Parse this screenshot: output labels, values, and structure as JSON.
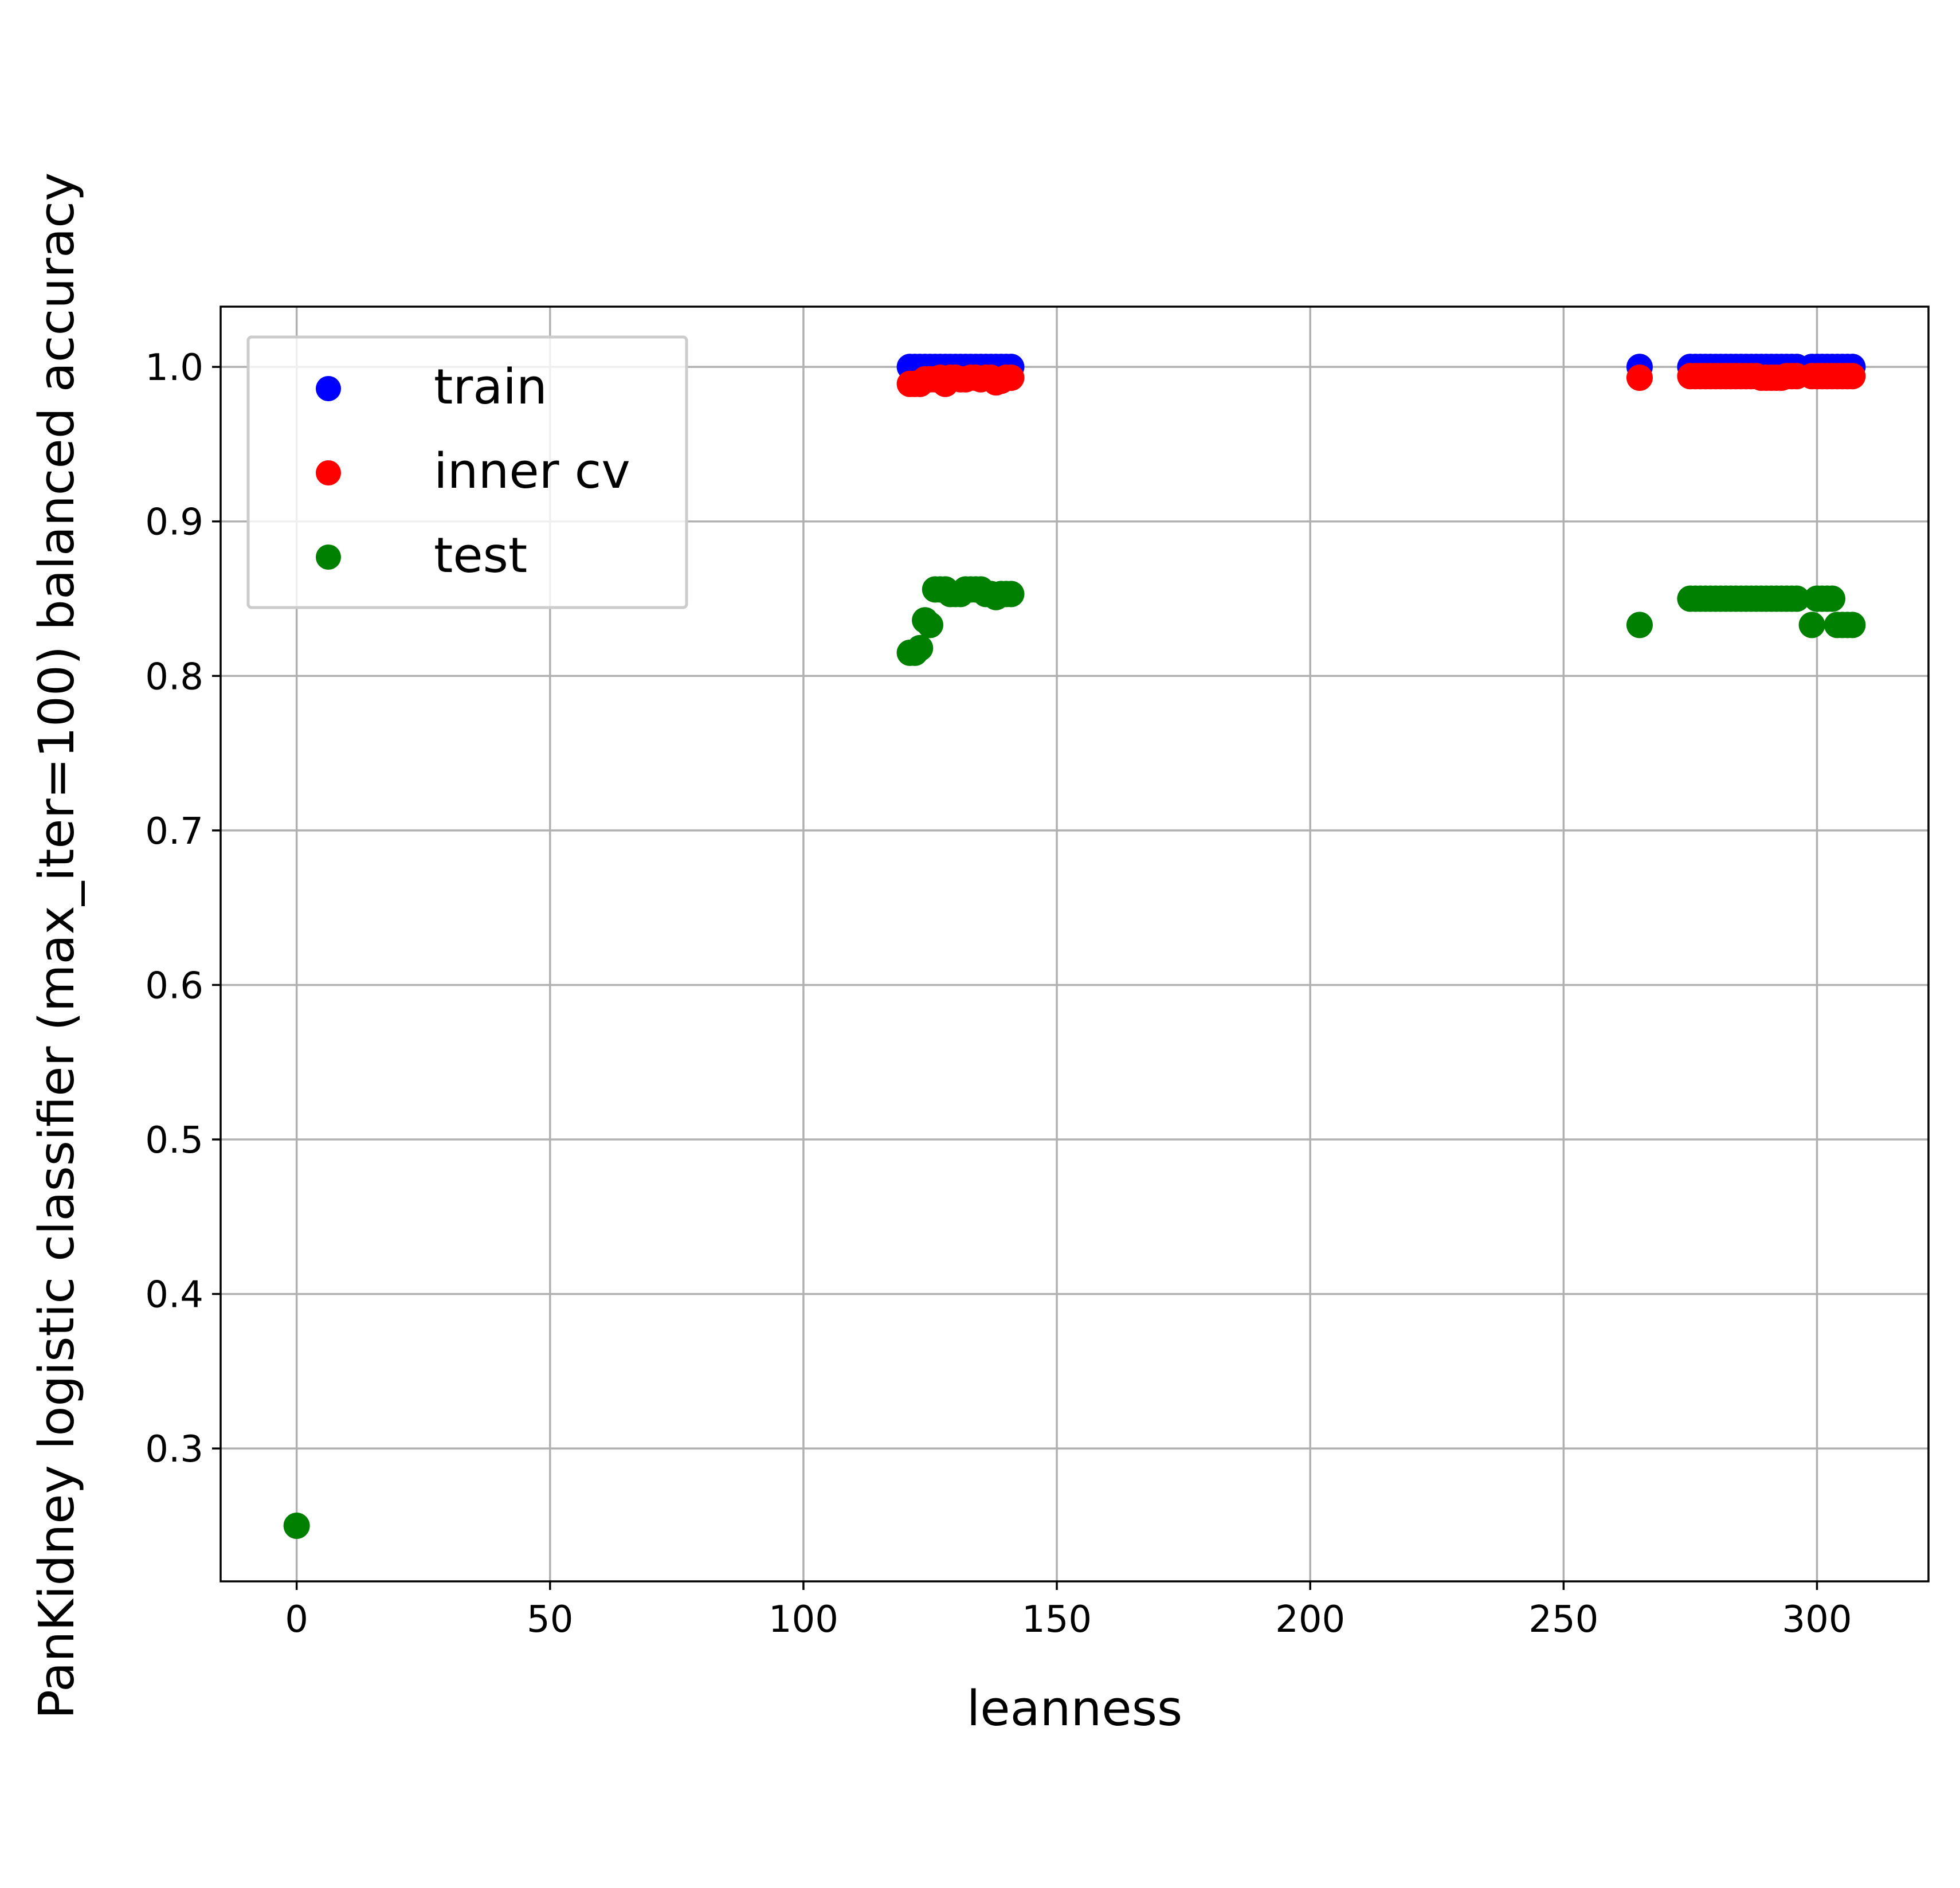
{
  "chart_data": {
    "type": "scatter",
    "title": "",
    "xlabel": "leanness",
    "ylabel": "PanKidney logistic classifier (max_iter=100) balanced accuracy",
    "xlim": [
      -15,
      322
    ],
    "ylim": [
      0.214,
      1.039
    ],
    "xticks": [
      0,
      50,
      100,
      150,
      200,
      250,
      300
    ],
    "yticks": [
      0.3,
      0.4,
      0.5,
      0.6,
      0.7,
      0.8,
      0.9,
      1.0
    ],
    "xtick_labels": [
      "0",
      "50",
      "100",
      "150",
      "200",
      "250",
      "300"
    ],
    "ytick_labels": [
      "0.3",
      "0.4",
      "0.5",
      "0.6",
      "0.7",
      "0.8",
      "0.9",
      "1.0"
    ],
    "grid": true,
    "legend_position": "top-left",
    "series": [
      {
        "name": "train",
        "color": "#0000ff",
        "points": [
          [
            121,
            1.0
          ],
          [
            122,
            1.0
          ],
          [
            123,
            1.0
          ],
          [
            124,
            1.0
          ],
          [
            125,
            1.0
          ],
          [
            126,
            1.0
          ],
          [
            127,
            1.0
          ],
          [
            128,
            1.0
          ],
          [
            129,
            1.0
          ],
          [
            130,
            1.0
          ],
          [
            131,
            1.0
          ],
          [
            132,
            1.0
          ],
          [
            133,
            1.0
          ],
          [
            134,
            1.0
          ],
          [
            135,
            1.0
          ],
          [
            136,
            1.0
          ],
          [
            137,
            1.0
          ],
          [
            138,
            1.0
          ],
          [
            139,
            1.0
          ],
          [
            140,
            1.0
          ],
          [
            141,
            1.0
          ],
          [
            265,
            1.0
          ],
          [
            275,
            1.0
          ],
          [
            276,
            1.0
          ],
          [
            277,
            1.0
          ],
          [
            278,
            1.0
          ],
          [
            279,
            1.0
          ],
          [
            280,
            1.0
          ],
          [
            281,
            1.0
          ],
          [
            282,
            1.0
          ],
          [
            283,
            1.0
          ],
          [
            284,
            1.0
          ],
          [
            285,
            1.0
          ],
          [
            286,
            1.0
          ],
          [
            287,
            1.0
          ],
          [
            288,
            1.0
          ],
          [
            289,
            1.0
          ],
          [
            290,
            1.0
          ],
          [
            291,
            1.0
          ],
          [
            292,
            1.0
          ],
          [
            293,
            1.0
          ],
          [
            294,
            1.0
          ],
          [
            295,
            1.0
          ],
          [
            296,
            1.0
          ],
          [
            299,
            1.0
          ],
          [
            300,
            1.0
          ],
          [
            301,
            1.0
          ],
          [
            302,
            1.0
          ],
          [
            303,
            1.0
          ],
          [
            304,
            1.0
          ],
          [
            305,
            1.0
          ],
          [
            306,
            1.0
          ],
          [
            307,
            1.0
          ]
        ]
      },
      {
        "name": "inner cv",
        "color": "#ff0000",
        "points": [
          [
            121,
            0.989
          ],
          [
            122,
            0.989
          ],
          [
            123,
            0.989
          ],
          [
            124,
            0.992
          ],
          [
            125,
            0.992
          ],
          [
            126,
            0.992
          ],
          [
            127,
            0.993
          ],
          [
            128,
            0.989
          ],
          [
            129,
            0.993
          ],
          [
            130,
            0.993
          ],
          [
            131,
            0.992
          ],
          [
            132,
            0.992
          ],
          [
            133,
            0.993
          ],
          [
            134,
            0.993
          ],
          [
            135,
            0.992
          ],
          [
            136,
            0.993
          ],
          [
            137,
            0.993
          ],
          [
            138,
            0.99
          ],
          [
            139,
            0.991
          ],
          [
            140,
            0.993
          ],
          [
            141,
            0.993
          ],
          [
            265,
            0.993
          ],
          [
            275,
            0.994
          ],
          [
            276,
            0.994
          ],
          [
            277,
            0.994
          ],
          [
            278,
            0.994
          ],
          [
            279,
            0.994
          ],
          [
            280,
            0.994
          ],
          [
            281,
            0.994
          ],
          [
            282,
            0.994
          ],
          [
            283,
            0.994
          ],
          [
            284,
            0.994
          ],
          [
            285,
            0.994
          ],
          [
            286,
            0.994
          ],
          [
            287,
            0.994
          ],
          [
            288,
            0.994
          ],
          [
            289,
            0.993
          ],
          [
            290,
            0.993
          ],
          [
            291,
            0.993
          ],
          [
            292,
            0.993
          ],
          [
            293,
            0.993
          ],
          [
            294,
            0.994
          ],
          [
            295,
            0.994
          ],
          [
            296,
            0.994
          ],
          [
            299,
            0.994
          ],
          [
            300,
            0.994
          ],
          [
            301,
            0.994
          ],
          [
            302,
            0.994
          ],
          [
            303,
            0.994
          ],
          [
            304,
            0.994
          ],
          [
            305,
            0.994
          ],
          [
            306,
            0.994
          ],
          [
            307,
            0.994
          ]
        ]
      },
      {
        "name": "test",
        "color": "#008000",
        "points": [
          [
            0,
            0.25
          ],
          [
            121,
            0.815
          ],
          [
            122,
            0.815
          ],
          [
            123,
            0.818
          ],
          [
            124,
            0.836
          ],
          [
            125,
            0.833
          ],
          [
            126,
            0.856
          ],
          [
            127,
            0.856
          ],
          [
            128,
            0.856
          ],
          [
            129,
            0.853
          ],
          [
            130,
            0.853
          ],
          [
            131,
            0.853
          ],
          [
            132,
            0.856
          ],
          [
            133,
            0.856
          ],
          [
            134,
            0.856
          ],
          [
            135,
            0.856
          ],
          [
            136,
            0.853
          ],
          [
            137,
            0.853
          ],
          [
            138,
            0.851
          ],
          [
            139,
            0.853
          ],
          [
            140,
            0.853
          ],
          [
            141,
            0.853
          ],
          [
            265,
            0.833
          ],
          [
            275,
            0.85
          ],
          [
            276,
            0.85
          ],
          [
            277,
            0.85
          ],
          [
            278,
            0.85
          ],
          [
            279,
            0.85
          ],
          [
            280,
            0.85
          ],
          [
            281,
            0.85
          ],
          [
            282,
            0.85
          ],
          [
            283,
            0.85
          ],
          [
            284,
            0.85
          ],
          [
            285,
            0.85
          ],
          [
            286,
            0.85
          ],
          [
            287,
            0.85
          ],
          [
            288,
            0.85
          ],
          [
            289,
            0.85
          ],
          [
            290,
            0.85
          ],
          [
            291,
            0.85
          ],
          [
            292,
            0.85
          ],
          [
            293,
            0.85
          ],
          [
            294,
            0.85
          ],
          [
            295,
            0.85
          ],
          [
            296,
            0.85
          ],
          [
            299,
            0.833
          ],
          [
            300,
            0.85
          ],
          [
            301,
            0.85
          ],
          [
            302,
            0.85
          ],
          [
            303,
            0.85
          ],
          [
            304,
            0.833
          ],
          [
            305,
            0.833
          ],
          [
            306,
            0.833
          ],
          [
            307,
            0.833
          ]
        ]
      }
    ]
  }
}
